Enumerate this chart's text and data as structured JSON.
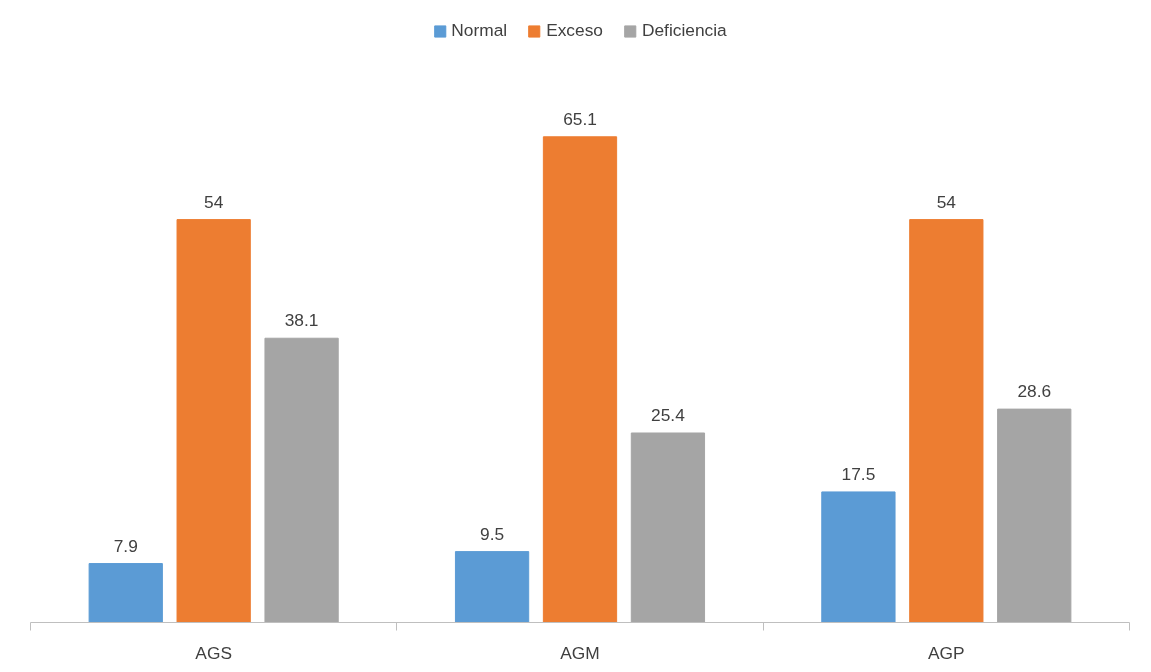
{
  "chart_data": {
    "type": "bar",
    "categories": [
      "AGS",
      "AGM",
      "AGP"
    ],
    "series": [
      {
        "name": "Normal",
        "color": "#5b9bd5",
        "values": [
          7.9,
          9.5,
          17.5
        ]
      },
      {
        "name": "Exceso",
        "color": "#ed7d31",
        "values": [
          54,
          65.1,
          54
        ]
      },
      {
        "name": "Deficiencia",
        "color": "#a5a5a5",
        "values": [
          38.1,
          25.4,
          28.6
        ]
      }
    ],
    "data_labels": true,
    "legend": "top",
    "grid": false
  }
}
